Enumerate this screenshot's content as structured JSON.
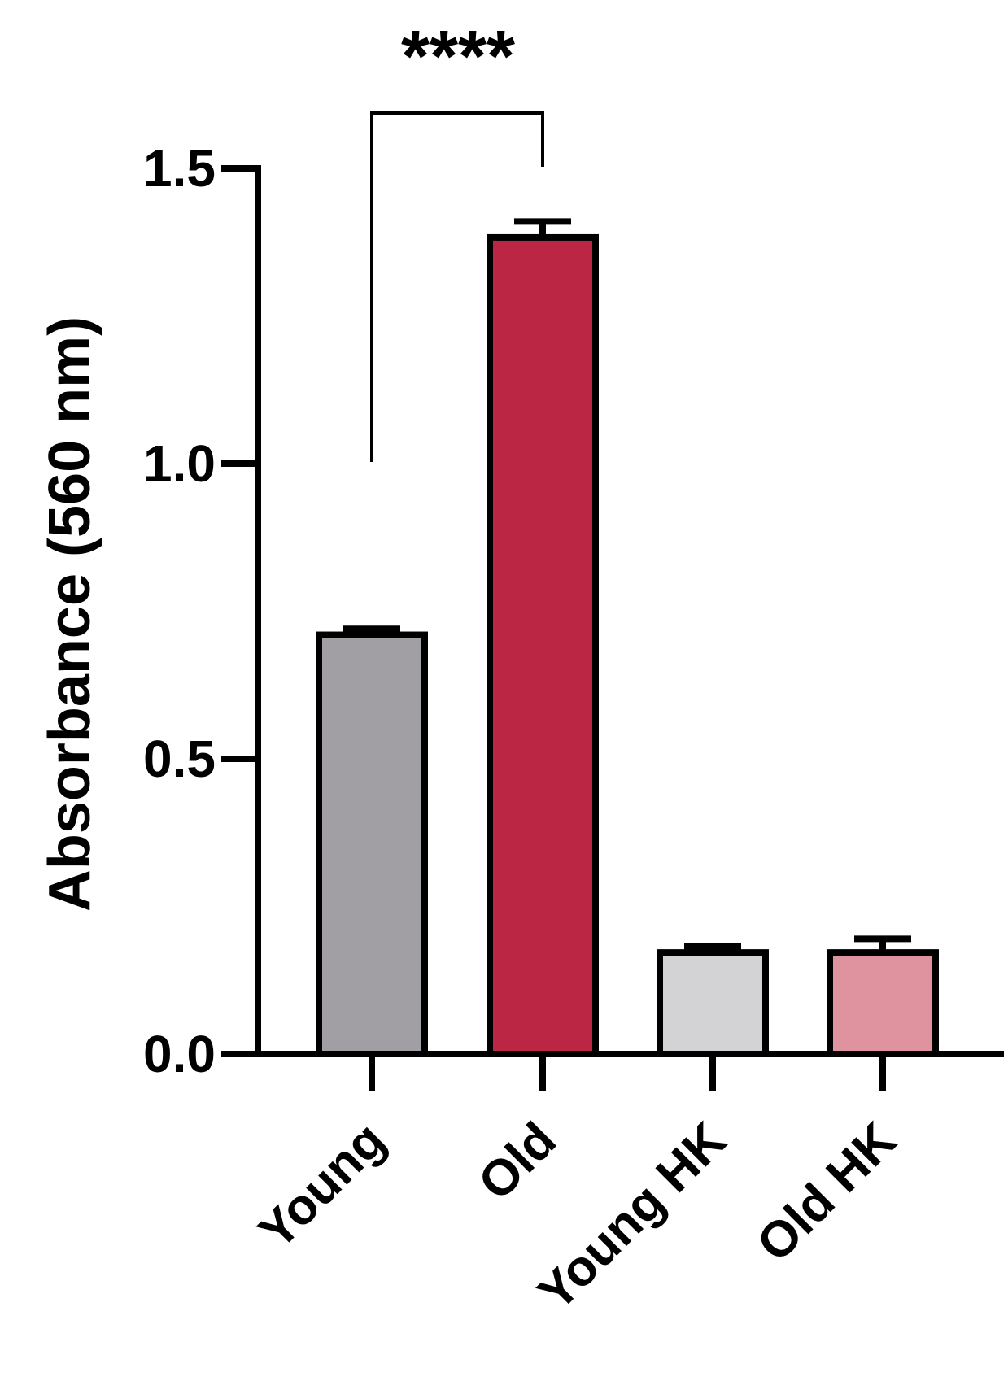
{
  "chart_data": {
    "type": "bar",
    "y_label": "Absorbance (560 nm)",
    "categories": [
      "Young",
      "Old",
      "Young HK",
      "Old HK"
    ],
    "values": [
      0.71,
      1.383,
      0.172,
      0.172
    ],
    "errors": [
      0.01,
      0.027,
      0.01,
      0.023
    ],
    "colors": [
      "#a19fa4",
      "#bb2644",
      "#d3d3d5",
      "#de939f"
    ],
    "ylim": [
      0,
      1.5
    ],
    "yticks": [
      {
        "value": 0,
        "label": "0.0"
      },
      0.5,
      {
        "value": 1,
        "label": "1.0"
      },
      1.5
    ],
    "annotations": [
      {
        "text": "****"
      }
    ]
  }
}
